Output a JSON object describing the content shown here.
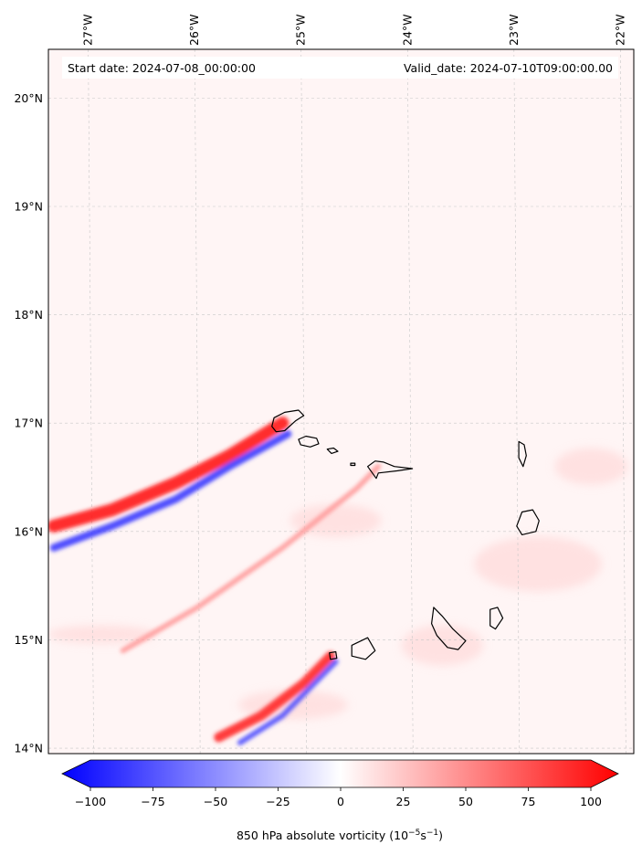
{
  "header": {
    "start_label": "Start date: 2024-07-08_00:00:00",
    "valid_label": "Valid_date: 2024-07-10T09:00:00.00"
  },
  "map": {
    "lon_range": [
      -27.4,
      -21.9
    ],
    "lat_range": [
      13.95,
      20.45
    ],
    "lon_ticks": [
      {
        "value": -27,
        "label": "27°W"
      },
      {
        "value": -26,
        "label": "26°W"
      },
      {
        "value": -25,
        "label": "25°W"
      },
      {
        "value": -24,
        "label": "24°W"
      },
      {
        "value": -23,
        "label": "23°W"
      },
      {
        "value": -22,
        "label": "22°W"
      }
    ],
    "lat_ticks": [
      {
        "value": 14,
        "label": "14°N"
      },
      {
        "value": 15,
        "label": "15°N"
      },
      {
        "value": 16,
        "label": "16°N"
      },
      {
        "value": 17,
        "label": "17°N"
      },
      {
        "value": 18,
        "label": "18°N"
      },
      {
        "value": 19,
        "label": "19°N"
      },
      {
        "value": 20,
        "label": "20°N"
      }
    ],
    "gridlines": true,
    "colors": {
      "background": "#fff5f5",
      "grid": "#c8c8c8",
      "coast": "#000000"
    }
  },
  "colorbar": {
    "ticks": [
      {
        "value": -100,
        "label": "−100"
      },
      {
        "value": -75,
        "label": "−75"
      },
      {
        "value": -50,
        "label": "−50"
      },
      {
        "value": -25,
        "label": "−25"
      },
      {
        "value": 0,
        "label": "0"
      },
      {
        "value": 25,
        "label": "25"
      },
      {
        "value": 50,
        "label": "50"
      },
      {
        "value": 75,
        "label": "75"
      },
      {
        "value": 100,
        "label": "100"
      }
    ],
    "range": [
      -100,
      100
    ],
    "label_main": "850 hPa absolute vorticity (10",
    "label_exp1": "−5",
    "label_mid": "s",
    "label_exp2": "−1",
    "label_end": ")",
    "colors": {
      "neg": "#0000ff",
      "mid": "#ffffff",
      "pos": "#ff0000"
    }
  },
  "features": {
    "bands": [
      {
        "name": "north-red-band",
        "color": "#ff1a1a",
        "points": [
          [
            -27.35,
            16.05
          ],
          [
            -26.8,
            16.2
          ],
          [
            -26.2,
            16.45
          ],
          [
            -25.7,
            16.7
          ],
          [
            -25.2,
            17.0
          ]
        ],
        "width": 0.12
      },
      {
        "name": "north-blue-band",
        "color": "#3b3bff",
        "points": [
          [
            -27.35,
            15.85
          ],
          [
            -26.8,
            16.05
          ],
          [
            -26.2,
            16.3
          ],
          [
            -25.7,
            16.6
          ],
          [
            -25.15,
            16.9
          ]
        ],
        "width": 0.07
      },
      {
        "name": "central-faint-red",
        "color": "#ff9a9a",
        "points": [
          [
            -26.7,
            14.9
          ],
          [
            -26.0,
            15.3
          ],
          [
            -25.2,
            15.85
          ],
          [
            -24.5,
            16.4
          ],
          [
            -24.3,
            16.6
          ]
        ],
        "width": 0.05
      },
      {
        "name": "south-red-band",
        "color": "#ff2a2a",
        "points": [
          [
            -25.8,
            14.1
          ],
          [
            -25.4,
            14.3
          ],
          [
            -25.0,
            14.6
          ],
          [
            -24.75,
            14.85
          ]
        ],
        "width": 0.09
      },
      {
        "name": "south-blue-band",
        "color": "#4a4aff",
        "points": [
          [
            -25.6,
            14.05
          ],
          [
            -25.2,
            14.3
          ],
          [
            -24.9,
            14.6
          ],
          [
            -24.7,
            14.8
          ]
        ],
        "width": 0.05
      }
    ],
    "islands": [
      {
        "name": "santo-antao",
        "points": [
          [
            -25.3,
            16.97
          ],
          [
            -25.28,
            17.05
          ],
          [
            -25.18,
            17.1
          ],
          [
            -25.05,
            17.12
          ],
          [
            -25.0,
            17.07
          ],
          [
            -25.08,
            17.02
          ],
          [
            -25.18,
            16.93
          ],
          [
            -25.26,
            16.92
          ]
        ]
      },
      {
        "name": "sao-vicente",
        "points": [
          [
            -25.05,
            16.85
          ],
          [
            -24.98,
            16.88
          ],
          [
            -24.88,
            16.86
          ],
          [
            -24.86,
            16.81
          ],
          [
            -24.94,
            16.78
          ],
          [
            -25.03,
            16.8
          ]
        ]
      },
      {
        "name": "santa-luzia",
        "points": [
          [
            -24.78,
            16.76
          ],
          [
            -24.72,
            16.77
          ],
          [
            -24.68,
            16.74
          ],
          [
            -24.74,
            16.72
          ]
        ]
      },
      {
        "name": "sao-nicolau",
        "points": [
          [
            -24.4,
            16.6
          ],
          [
            -24.33,
            16.65
          ],
          [
            -24.25,
            16.64
          ],
          [
            -24.15,
            16.6
          ],
          [
            -23.98,
            16.58
          ],
          [
            -24.12,
            16.56
          ],
          [
            -24.3,
            16.54
          ],
          [
            -24.32,
            16.49
          ]
        ]
      },
      {
        "name": "sal",
        "points": [
          [
            -22.98,
            16.83
          ],
          [
            -22.93,
            16.8
          ],
          [
            -22.91,
            16.7
          ],
          [
            -22.94,
            16.6
          ],
          [
            -22.98,
            16.68
          ]
        ]
      },
      {
        "name": "boa-vista",
        "points": [
          [
            -22.95,
            16.18
          ],
          [
            -22.85,
            16.2
          ],
          [
            -22.79,
            16.1
          ],
          [
            -22.82,
            16.0
          ],
          [
            -22.95,
            15.97
          ],
          [
            -23.0,
            16.05
          ]
        ]
      },
      {
        "name": "maio",
        "points": [
          [
            -23.25,
            15.28
          ],
          [
            -23.18,
            15.3
          ],
          [
            -23.13,
            15.2
          ],
          [
            -23.2,
            15.1
          ],
          [
            -23.25,
            15.13
          ]
        ]
      },
      {
        "name": "santiago",
        "points": [
          [
            -23.78,
            15.3
          ],
          [
            -23.7,
            15.22
          ],
          [
            -23.6,
            15.1
          ],
          [
            -23.48,
            14.99
          ],
          [
            -23.55,
            14.91
          ],
          [
            -23.65,
            14.93
          ],
          [
            -23.75,
            15.04
          ],
          [
            -23.8,
            15.15
          ]
        ]
      },
      {
        "name": "fogo",
        "points": [
          [
            -24.55,
            14.95
          ],
          [
            -24.4,
            15.02
          ],
          [
            -24.33,
            14.9
          ],
          [
            -24.42,
            14.82
          ],
          [
            -24.55,
            14.85
          ]
        ]
      },
      {
        "name": "brava",
        "points": [
          [
            -24.76,
            14.88
          ],
          [
            -24.7,
            14.89
          ],
          [
            -24.69,
            14.83
          ],
          [
            -24.75,
            14.82
          ]
        ]
      },
      {
        "name": "raso",
        "points": [
          [
            -24.56,
            16.63
          ],
          [
            -24.52,
            16.63
          ],
          [
            -24.52,
            16.61
          ],
          [
            -24.56,
            16.61
          ]
        ]
      }
    ]
  }
}
